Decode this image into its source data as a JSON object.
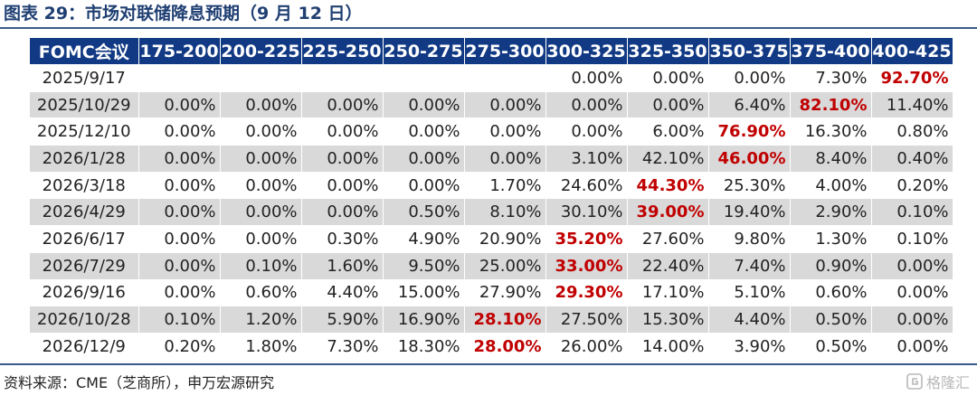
{
  "title": "图表 29：市场对联储降息预期（9 月 12 日）",
  "table": {
    "headers": [
      "FOMC会议",
      "175-200",
      "200-225",
      "225-250",
      "250-275",
      "275-300",
      "300-325",
      "325-350",
      "350-375",
      "375-400",
      "400-425"
    ],
    "rows": [
      {
        "date": "2025/9/17",
        "cells": [
          "",
          "",
          "",
          "",
          "",
          "0.00%",
          "0.00%",
          "0.00%",
          "7.30%",
          "92.70%"
        ],
        "highlight": 9
      },
      {
        "date": "2025/10/29",
        "cells": [
          "0.00%",
          "0.00%",
          "0.00%",
          "0.00%",
          "0.00%",
          "0.00%",
          "0.00%",
          "6.40%",
          "82.10%",
          "11.40%"
        ],
        "highlight": 8
      },
      {
        "date": "2025/12/10",
        "cells": [
          "0.00%",
          "0.00%",
          "0.00%",
          "0.00%",
          "0.00%",
          "0.00%",
          "6.00%",
          "76.90%",
          "16.30%",
          "0.80%"
        ],
        "highlight": 7
      },
      {
        "date": "2026/1/28",
        "cells": [
          "0.00%",
          "0.00%",
          "0.00%",
          "0.00%",
          "0.00%",
          "3.10%",
          "42.10%",
          "46.00%",
          "8.40%",
          "0.40%"
        ],
        "highlight": 7
      },
      {
        "date": "2026/3/18",
        "cells": [
          "0.00%",
          "0.00%",
          "0.00%",
          "0.00%",
          "1.70%",
          "24.60%",
          "44.30%",
          "25.30%",
          "4.00%",
          "0.20%"
        ],
        "highlight": 6
      },
      {
        "date": "2026/4/29",
        "cells": [
          "0.00%",
          "0.00%",
          "0.00%",
          "0.50%",
          "8.10%",
          "30.10%",
          "39.00%",
          "19.40%",
          "2.90%",
          "0.10%"
        ],
        "highlight": 6
      },
      {
        "date": "2026/6/17",
        "cells": [
          "0.00%",
          "0.00%",
          "0.30%",
          "4.90%",
          "20.90%",
          "35.20%",
          "27.60%",
          "9.80%",
          "1.30%",
          "0.10%"
        ],
        "highlight": 5
      },
      {
        "date": "2026/7/29",
        "cells": [
          "0.00%",
          "0.10%",
          "1.60%",
          "9.50%",
          "25.00%",
          "33.00%",
          "22.40%",
          "7.40%",
          "0.90%",
          "0.00%"
        ],
        "highlight": 5
      },
      {
        "date": "2026/9/16",
        "cells": [
          "0.00%",
          "0.60%",
          "4.40%",
          "15.00%",
          "27.90%",
          "29.30%",
          "17.10%",
          "5.10%",
          "0.60%",
          "0.00%"
        ],
        "highlight": 5
      },
      {
        "date": "2026/10/28",
        "cells": [
          "0.10%",
          "1.20%",
          "5.90%",
          "16.90%",
          "28.10%",
          "27.50%",
          "15.30%",
          "4.40%",
          "0.50%",
          "0.00%"
        ],
        "highlight": 4
      },
      {
        "date": "2026/12/9",
        "cells": [
          "0.20%",
          "1.80%",
          "7.30%",
          "18.30%",
          "28.00%",
          "26.00%",
          "14.00%",
          "3.90%",
          "0.50%",
          "0.00%"
        ],
        "highlight": 4
      }
    ]
  },
  "colors": {
    "header_bg": "#123a84",
    "title": "#1f3f72",
    "highlight": "#c00000",
    "stripe": "#d9d9d9"
  },
  "source": "资料来源：CME（芝商所），申万宏源研究",
  "watermark": {
    "text": "格隆汇",
    "icon": "watermark-logo-icon"
  }
}
